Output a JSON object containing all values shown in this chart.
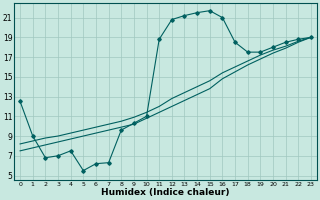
{
  "xlabel": "Humidex (Indice chaleur)",
  "ylabel": "",
  "bg_color": "#c8e8e0",
  "grid_color": "#a0c8c0",
  "line_color": "#006060",
  "xlim": [
    -0.5,
    23.5
  ],
  "ylim": [
    4.5,
    22.5
  ],
  "xticks": [
    0,
    1,
    2,
    3,
    4,
    5,
    6,
    7,
    8,
    9,
    10,
    11,
    12,
    13,
    14,
    15,
    16,
    17,
    18,
    19,
    20,
    21,
    22,
    23
  ],
  "yticks": [
    5,
    7,
    9,
    11,
    13,
    15,
    17,
    19,
    21
  ],
  "line1_x": [
    0,
    1,
    2,
    3,
    4,
    5,
    6,
    7,
    8,
    9,
    10,
    11,
    12,
    13,
    14,
    15,
    16,
    17,
    18,
    19,
    20,
    21,
    22,
    23
  ],
  "line1_y": [
    12.5,
    9.0,
    6.8,
    7.0,
    7.5,
    5.5,
    6.2,
    6.3,
    9.6,
    10.3,
    11.0,
    18.8,
    20.8,
    21.2,
    21.5,
    21.7,
    21.0,
    18.5,
    17.5,
    17.5,
    18.0,
    18.5,
    18.8,
    19.0
  ],
  "line2_x": [
    0,
    1,
    2,
    3,
    4,
    5,
    6,
    7,
    8,
    9,
    10,
    11,
    12,
    13,
    14,
    15,
    16,
    17,
    18,
    19,
    20,
    21,
    22,
    23
  ],
  "line2_y": [
    7.5,
    7.8,
    8.1,
    8.4,
    8.7,
    9.0,
    9.3,
    9.6,
    9.9,
    10.2,
    10.8,
    11.4,
    12.0,
    12.6,
    13.2,
    13.8,
    14.8,
    15.5,
    16.2,
    16.8,
    17.4,
    17.9,
    18.5,
    19.0
  ],
  "line3_x": [
    0,
    1,
    2,
    3,
    4,
    5,
    6,
    7,
    8,
    9,
    10,
    11,
    12,
    13,
    14,
    15,
    16,
    17,
    18,
    19,
    20,
    21,
    22,
    23
  ],
  "line3_y": [
    8.2,
    8.5,
    8.8,
    9.0,
    9.3,
    9.6,
    9.9,
    10.2,
    10.5,
    10.9,
    11.4,
    12.0,
    12.8,
    13.4,
    14.0,
    14.6,
    15.4,
    16.0,
    16.6,
    17.2,
    17.7,
    18.1,
    18.6,
    19.0
  ]
}
